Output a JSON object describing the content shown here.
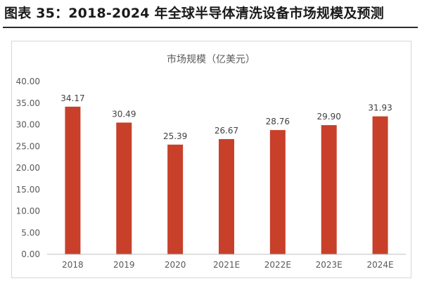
{
  "figure_title": "图表 35：2018-2024 年全球半导体清洗设备市场规模及预测",
  "colors": {
    "bar": "#C8402A",
    "axis": "#bfbfbf",
    "text": "#595959"
  },
  "chart_data": {
    "type": "bar",
    "title": "市场规模（亿美元）",
    "categories": [
      "2018",
      "2019",
      "2020",
      "2021E",
      "2022E",
      "2023E",
      "2024E"
    ],
    "values": [
      34.17,
      30.49,
      25.39,
      26.67,
      28.76,
      29.9,
      31.93
    ],
    "value_labels": [
      "34.17",
      "30.49",
      "25.39",
      "26.67",
      "28.76",
      "29.90",
      "31.93"
    ],
    "y_ticks": [
      "0.00",
      "5.00",
      "10.00",
      "15.00",
      "20.00",
      "25.00",
      "30.00",
      "35.00",
      "40.00"
    ],
    "ylim": [
      0,
      40
    ],
    "xlabel": "",
    "ylabel": "",
    "grid": false,
    "legend": "none"
  }
}
